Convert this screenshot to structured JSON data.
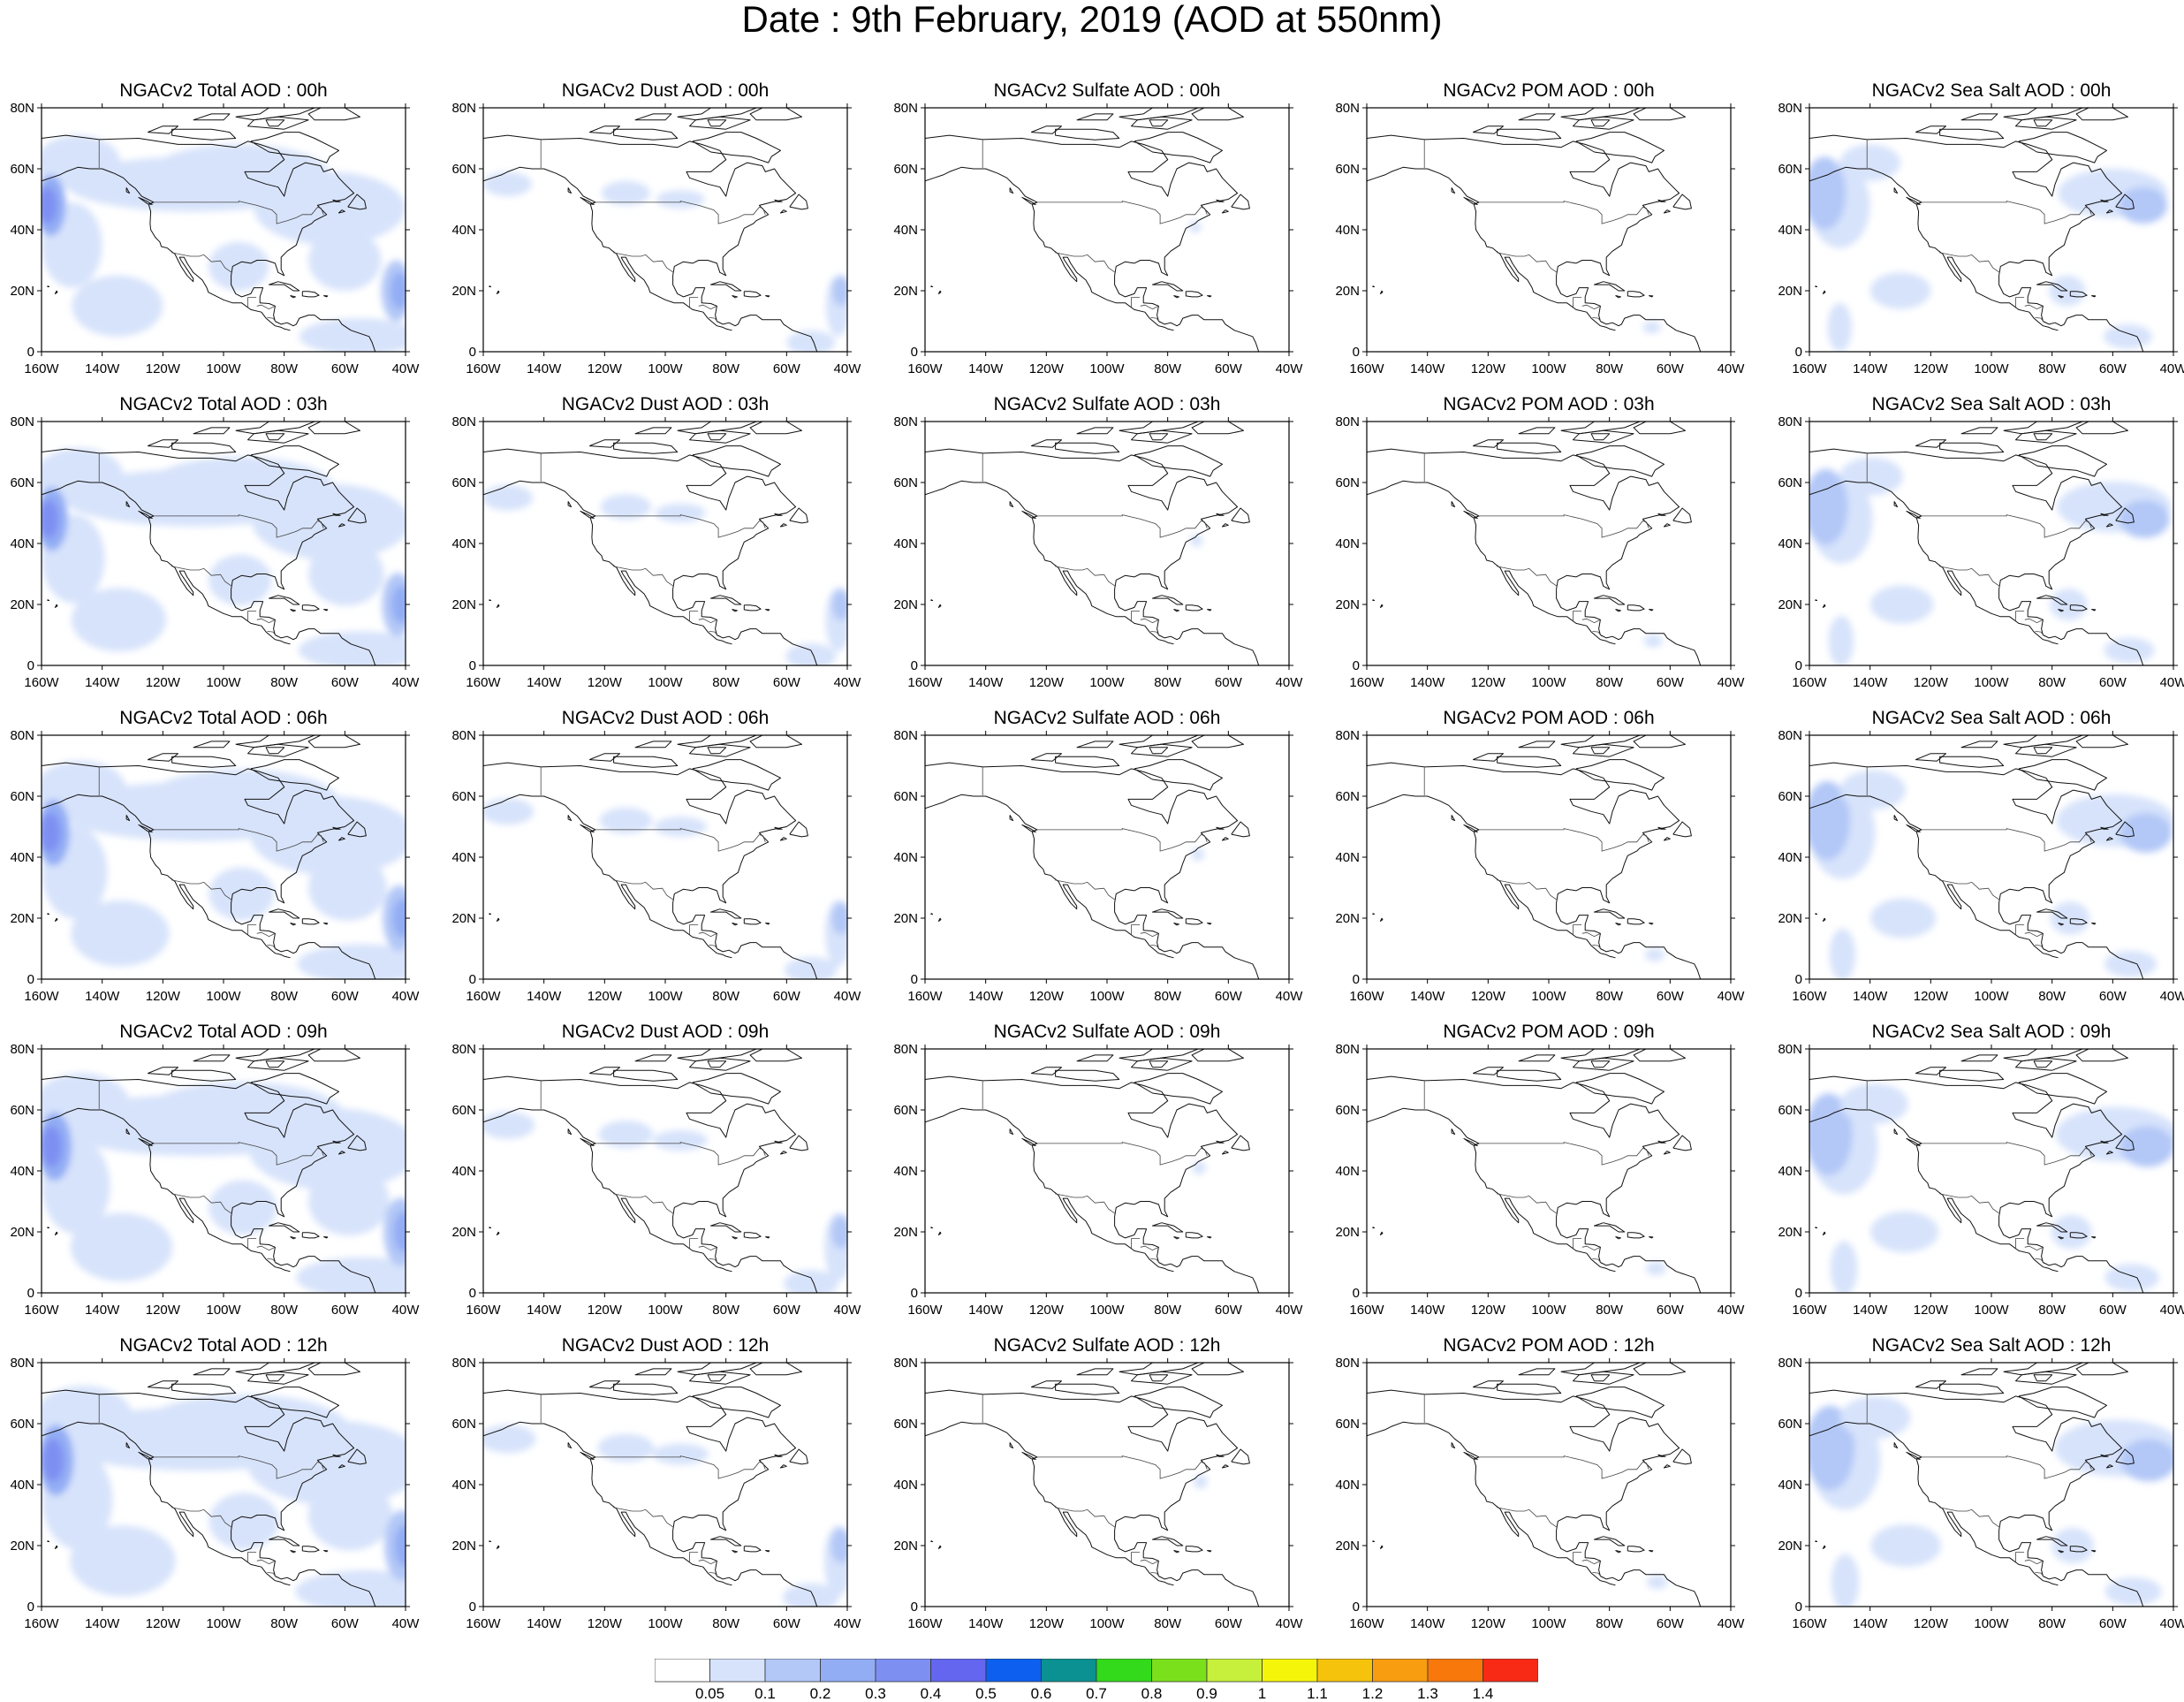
{
  "title": "Date : 9th February, 2019 (AOD at 550nm)",
  "axes": {
    "lat_labels": [
      "80N",
      "60N",
      "40N",
      "20N",
      "0"
    ],
    "lon_labels": [
      "160W",
      "140W",
      "120W",
      "100W",
      "80W",
      "60W",
      "40W"
    ],
    "lon_range": [
      -160,
      -40
    ],
    "lat_range": [
      0,
      80
    ]
  },
  "columns": [
    "Total",
    "Dust",
    "Sulfate",
    "POM",
    "Sea Salt"
  ],
  "rows": [
    "00h",
    "03h",
    "06h",
    "09h",
    "12h"
  ],
  "panel_titles": [
    [
      "NGACv2 Total AOD : 00h",
      "NGACv2 Dust AOD : 00h",
      "NGACv2 Sulfate AOD : 00h",
      "NGACv2 POM AOD : 00h",
      "NGACv2 Sea Salt AOD : 00h"
    ],
    [
      "NGACv2 Total AOD : 03h",
      "NGACv2 Dust AOD : 03h",
      "NGACv2 Sulfate AOD : 03h",
      "NGACv2 POM AOD : 03h",
      "NGACv2 Sea Salt AOD : 03h"
    ],
    [
      "NGACv2 Total AOD : 06h",
      "NGACv2 Dust AOD : 06h",
      "NGACv2 Sulfate AOD : 06h",
      "NGACv2 POM AOD : 06h",
      "NGACv2 Sea Salt AOD : 06h"
    ],
    [
      "NGACv2 Total AOD : 09h",
      "NGACv2 Dust AOD : 09h",
      "NGACv2 Sulfate AOD : 09h",
      "NGACv2 POM AOD : 09h",
      "NGACv2 Sea Salt  AOD : 09h"
    ],
    [
      "NGACv2 Total AOD  : 12h",
      "NGACv2 Dust AOD : 12h",
      "NGACv2 Sulfate AOD : 12h",
      "NGACv2 POM  AOD : 12h",
      "NGACv2 Sea Salt  AOD : 12h"
    ]
  ],
  "colorbar": {
    "labels": [
      "0.05",
      "0.1",
      "0.2",
      "0.3",
      "0.4",
      "0.5",
      "0.6",
      "0.7",
      "0.8",
      "0.9",
      "1",
      "1.1",
      "1.2",
      "1.3",
      "1.4"
    ],
    "colors": [
      "#ffffff",
      "#d7e3fb",
      "#b3c8f7",
      "#93adf4",
      "#7e8ff2",
      "#6466ef",
      "#0d5fef",
      "#0b9191",
      "#33d91b",
      "#7be01c",
      "#c6f03c",
      "#f5f50a",
      "#f5c30c",
      "#f89c10",
      "#f9780c",
      "#f82a16"
    ]
  },
  "map_colors": {
    "coast": "#111111",
    "border": "#444444",
    "aod_levels": [
      "#d7e3fb",
      "#b3c8f7",
      "#93adf4",
      "#7e8ff2"
    ]
  },
  "plumes": {
    "Total": [
      {
        "lon": -148,
        "lat": 62,
        "rlon": 14,
        "rlat": 9,
        "level": 0
      },
      {
        "lon": -110,
        "lat": 55,
        "rlon": 42,
        "rlat": 9,
        "level": 0
      },
      {
        "lon": -95,
        "lat": 58,
        "rlon": 30,
        "rlat": 10,
        "level": 0
      },
      {
        "lon": -65,
        "lat": 47,
        "rlon": 25,
        "rlat": 12,
        "level": 0
      },
      {
        "lon": -150,
        "lat": 35,
        "rlon": 10,
        "rlat": 14,
        "level": 0
      },
      {
        "lon": -135,
        "lat": 15,
        "rlon": 15,
        "rlat": 10,
        "level": 0
      },
      {
        "lon": -95,
        "lat": 28,
        "rlon": 10,
        "rlat": 8,
        "level": 0
      },
      {
        "lon": -60,
        "lat": 30,
        "rlon": 12,
        "rlat": 10,
        "level": 0
      },
      {
        "lon": -55,
        "lat": 5,
        "rlon": 20,
        "rlat": 6,
        "level": 0
      },
      {
        "lon": -157,
        "lat": 48,
        "rlon": 5,
        "rlat": 10,
        "level": 2
      },
      {
        "lon": -158,
        "lat": 48,
        "rlon": 3,
        "rlat": 6,
        "level": 3
      },
      {
        "lon": -43,
        "lat": 20,
        "rlon": 5,
        "rlat": 10,
        "level": 1
      },
      {
        "lon": -42,
        "lat": 20,
        "rlon": 3,
        "rlat": 6,
        "level": 2
      }
    ],
    "Dust": [
      {
        "lon": -113,
        "lat": 52,
        "rlon": 8,
        "rlat": 4,
        "level": 0
      },
      {
        "lon": -95,
        "lat": 50,
        "rlon": 8,
        "rlat": 3,
        "level": 0
      },
      {
        "lon": -152,
        "lat": 55,
        "rlon": 8,
        "rlat": 4,
        "level": 0
      },
      {
        "lon": -43,
        "lat": 15,
        "rlon": 4,
        "rlat": 10,
        "level": 0
      },
      {
        "lon": -42,
        "lat": 20,
        "rlon": 3,
        "rlat": 5,
        "level": 1
      },
      {
        "lon": -52,
        "lat": 3,
        "rlon": 8,
        "rlat": 4,
        "level": 0
      }
    ],
    "Sulfate": [
      {
        "lon": -71,
        "lat": 41,
        "rlon": 2,
        "rlat": 2,
        "level": 0
      }
    ],
    "POM": [
      {
        "lon": -66,
        "lat": 8,
        "rlon": 3,
        "rlat": 2,
        "level": 0
      }
    ],
    "Sea Salt": [
      {
        "lon": -150,
        "lat": 48,
        "rlon": 10,
        "rlat": 14,
        "level": 0
      },
      {
        "lon": -157,
        "lat": 52,
        "rlon": 4,
        "rlat": 9,
        "level": 2
      },
      {
        "lon": -155,
        "lat": 52,
        "rlon": 7,
        "rlat": 12,
        "level": 1
      },
      {
        "lon": -140,
        "lat": 62,
        "rlon": 10,
        "rlat": 6,
        "level": 0
      },
      {
        "lon": -60,
        "lat": 52,
        "rlon": 18,
        "rlat": 8,
        "level": 0
      },
      {
        "lon": -50,
        "lat": 48,
        "rlon": 8,
        "rlat": 6,
        "level": 1
      },
      {
        "lon": -130,
        "lat": 20,
        "rlon": 10,
        "rlat": 6,
        "level": 0
      },
      {
        "lon": -150,
        "lat": 8,
        "rlon": 4,
        "rlat": 8,
        "level": 0
      },
      {
        "lon": -75,
        "lat": 20,
        "rlon": 6,
        "rlat": 5,
        "level": 0
      },
      {
        "lon": -55,
        "lat": 5,
        "rlon": 8,
        "rlat": 4,
        "level": 0
      }
    ]
  }
}
